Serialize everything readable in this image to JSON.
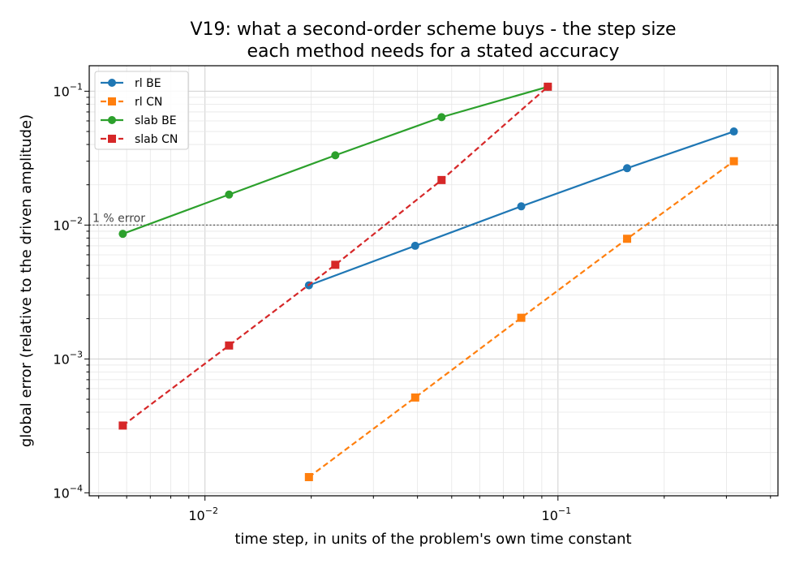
{
  "chart_data": {
    "type": "line",
    "title": [
      "V19: what a second-order scheme buys - the step size",
      "each method needs for a stated accuracy"
    ],
    "xlabel": "time step, in units of the problem's own time constant",
    "ylabel": "global error (relative to the driven amplitude)",
    "xscale": "log",
    "yscale": "log",
    "xlim": [
      0.0047,
      0.42
    ],
    "ylim": [
      9.5e-05,
      0.155
    ],
    "grid": true,
    "legend_position": "top-left",
    "xticks": [
      {
        "value": 0.01,
        "base": "10",
        "exp": "−2"
      },
      {
        "value": 0.1,
        "base": "10",
        "exp": "−1"
      }
    ],
    "yticks": [
      {
        "value": 0.0001,
        "base": "10",
        "exp": "−4"
      },
      {
        "value": 0.001,
        "base": "10",
        "exp": "−3"
      },
      {
        "value": 0.01,
        "base": "10",
        "exp": "−2"
      },
      {
        "value": 0.1,
        "base": "10",
        "exp": "−1"
      }
    ],
    "reference_line": {
      "y": 0.01,
      "label": "1 % error",
      "color": "#555555"
    },
    "series": [
      {
        "name": "rl BE",
        "color": "#1f77b4",
        "marker": "circle",
        "dashed": false,
        "x": [
          0.0197,
          0.0394,
          0.0787,
          0.157,
          0.315
        ],
        "y": [
          0.00355,
          0.007,
          0.0138,
          0.0266,
          0.05
        ]
      },
      {
        "name": "rl CN",
        "color": "#ff7f0e",
        "marker": "square",
        "dashed": true,
        "x": [
          0.0197,
          0.0394,
          0.0787,
          0.157,
          0.315
        ],
        "y": [
          0.000131,
          0.000515,
          0.00203,
          0.0079,
          0.03
        ]
      },
      {
        "name": "slab BE",
        "color": "#2ca02c",
        "marker": "circle",
        "dashed": false,
        "x": [
          0.00585,
          0.0117,
          0.0234,
          0.0468,
          0.0936
        ],
        "y": [
          0.0086,
          0.0169,
          0.0332,
          0.064,
          0.108
        ]
      },
      {
        "name": "slab CN",
        "color": "#d62728",
        "marker": "square",
        "dashed": true,
        "x": [
          0.00585,
          0.0117,
          0.0234,
          0.0468,
          0.0936
        ],
        "y": [
          0.000318,
          0.00126,
          0.00505,
          0.0217,
          0.108
        ]
      }
    ]
  }
}
